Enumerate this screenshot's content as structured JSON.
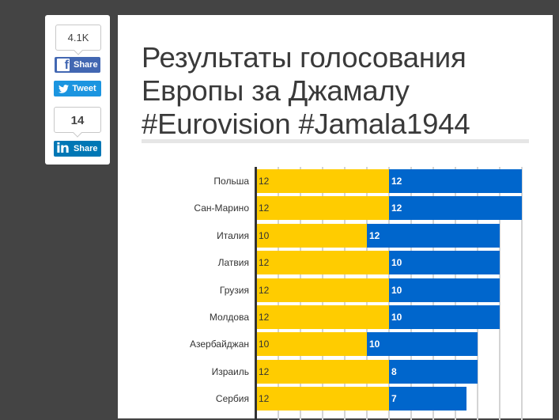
{
  "share": {
    "facebook_count": "4.1K",
    "facebook_label": "Share",
    "twitter_label": "Tweet",
    "linkedin_count": "14",
    "linkedin_label": "Share"
  },
  "article": {
    "title": "Результаты голосования Европы за Джамалу #Eurovision #Jamala1944"
  },
  "colors": {
    "yellow": "#ffcc00",
    "blue": "#0066cc",
    "background": "#444444"
  },
  "chart_data": {
    "type": "bar",
    "orientation": "horizontal",
    "stacked": true,
    "title": "Результаты голосования Европы за Джамалу #Eurovision #Jamala1944",
    "categories": [
      "Польша",
      "Сан-Марино",
      "Италия",
      "Латвия",
      "Грузия",
      "Молдова",
      "Азербайджан",
      "Израиль",
      "Сербия"
    ],
    "series": [
      {
        "name": "yellow",
        "color": "#ffcc00",
        "values": [
          12,
          12,
          10,
          12,
          12,
          12,
          10,
          12,
          12
        ]
      },
      {
        "name": "blue",
        "color": "#0066cc",
        "values": [
          12,
          12,
          12,
          10,
          10,
          10,
          10,
          8,
          7
        ]
      }
    ],
    "xlabel": "",
    "ylabel": "",
    "xlim": [
      0,
      24
    ],
    "grid": true,
    "grid_step": 2,
    "legend": "none"
  }
}
